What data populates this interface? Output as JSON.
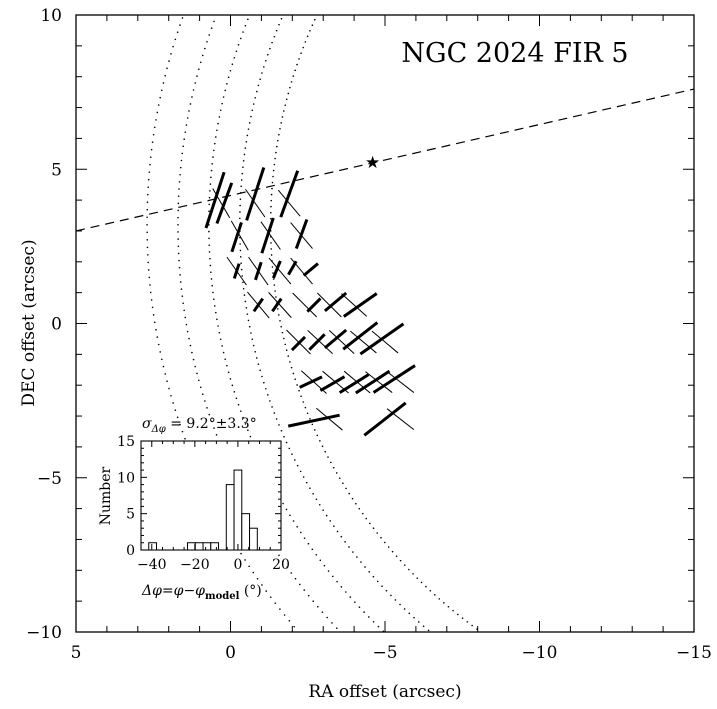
{
  "chart_data": [
    {
      "type": "scatter",
      "title": "NGC 2024 FIR 5",
      "xlabel": "RA offset (arcsec)",
      "ylabel": "DEC offset (arcsec)",
      "xlim": [
        5,
        -15
      ],
      "ylim": [
        -10,
        10
      ],
      "x_ticks": [
        5,
        0,
        -5,
        -10,
        -15
      ],
      "y_ticks": [
        10,
        5,
        0,
        -5,
        -10
      ],
      "x_tick_labels": [
        "5",
        "0",
        "−5",
        "−10",
        "−15"
      ],
      "y_tick_labels": [
        "10",
        "5",
        "0",
        "−5",
        "−10"
      ],
      "star_marker": {
        "x": -4.6,
        "y": 5.2,
        "symbol": "★"
      },
      "dashed_line": {
        "points": [
          [
            5,
            3.0
          ],
          [
            -15,
            7.6
          ]
        ]
      },
      "model_field_arcs": [
        {
          "center": [
            -17.5,
            3.2
          ],
          "radius": 16.2
        },
        {
          "center": [
            -17.5,
            3.2
          ],
          "radius": 17.2
        },
        {
          "center": [
            -17.5,
            3.2
          ],
          "radius": 18.2
        },
        {
          "center": [
            -17.5,
            3.2
          ],
          "radius": 19.2
        },
        {
          "center": [
            -17.5,
            3.2
          ],
          "radius": 20.2
        }
      ],
      "polarization_vectors_observed": [
        {
          "x": 0.5,
          "y": 4.0,
          "angle": 72,
          "length": 1.9
        },
        {
          "x": -0.8,
          "y": 4.2,
          "angle": 72,
          "length": 1.8
        },
        {
          "x": -1.9,
          "y": 4.2,
          "angle": 70,
          "length": 1.6
        },
        {
          "x": 0.2,
          "y": 3.9,
          "angle": 70,
          "length": 1.4
        },
        {
          "x": -0.2,
          "y": 2.8,
          "angle": 72,
          "length": 1.0
        },
        {
          "x": -1.2,
          "y": 2.85,
          "angle": 72,
          "length": 1.2
        },
        {
          "x": -2.3,
          "y": 2.9,
          "angle": 70,
          "length": 1.0
        },
        {
          "x": -0.2,
          "y": 1.7,
          "angle": 72,
          "length": 0.5
        },
        {
          "x": -0.9,
          "y": 1.7,
          "angle": 72,
          "length": 0.6
        },
        {
          "x": -1.5,
          "y": 1.75,
          "angle": 68,
          "length": 0.6
        },
        {
          "x": -2.0,
          "y": 1.8,
          "angle": 60,
          "length": 0.5
        },
        {
          "x": -2.6,
          "y": 1.75,
          "angle": 40,
          "length": 0.6
        },
        {
          "x": -0.9,
          "y": 0.6,
          "angle": 55,
          "length": 0.5
        },
        {
          "x": -1.5,
          "y": 0.6,
          "angle": 55,
          "length": 0.5
        },
        {
          "x": -2.7,
          "y": 0.6,
          "angle": 45,
          "length": 0.6
        },
        {
          "x": -3.4,
          "y": 0.7,
          "angle": 40,
          "length": 0.9
        },
        {
          "x": -4.2,
          "y": 0.6,
          "angle": 35,
          "length": 1.3
        },
        {
          "x": -2.2,
          "y": -0.65,
          "angle": 45,
          "length": 0.6
        },
        {
          "x": -2.8,
          "y": -0.6,
          "angle": 45,
          "length": 0.7
        },
        {
          "x": -3.4,
          "y": -0.5,
          "angle": 40,
          "length": 0.9
        },
        {
          "x": -4.2,
          "y": -0.4,
          "angle": 38,
          "length": 1.4
        },
        {
          "x": -4.9,
          "y": -0.5,
          "angle": 35,
          "length": 1.7
        },
        {
          "x": -2.6,
          "y": -1.9,
          "angle": 25,
          "length": 0.8
        },
        {
          "x": -3.3,
          "y": -1.95,
          "angle": 30,
          "length": 0.9
        },
        {
          "x": -4.0,
          "y": -1.95,
          "angle": 32,
          "length": 1.1
        },
        {
          "x": -4.6,
          "y": -1.9,
          "angle": 33,
          "length": 1.3
        },
        {
          "x": -5.3,
          "y": -1.8,
          "angle": 33,
          "length": 1.6
        },
        {
          "x": -2.7,
          "y": -3.15,
          "angle": 12,
          "length": 1.7
        },
        {
          "x": -5.0,
          "y": -3.1,
          "angle": 38,
          "length": 1.7
        }
      ],
      "polarization_vectors_model": [
        {
          "x": 0.3,
          "y": 3.9,
          "angle": -60,
          "length": 1.1
        },
        {
          "x": -0.8,
          "y": 3.9,
          "angle": -55,
          "length": 1.1
        },
        {
          "x": -1.9,
          "y": 3.9,
          "angle": -50,
          "length": 1.1
        },
        {
          "x": -0.3,
          "y": 2.85,
          "angle": -60,
          "length": 1.1
        },
        {
          "x": -1.3,
          "y": 2.85,
          "angle": -55,
          "length": 1.1
        },
        {
          "x": -2.3,
          "y": 2.85,
          "angle": -50,
          "length": 1.1
        },
        {
          "x": -0.2,
          "y": 1.7,
          "angle": -55,
          "length": 1.1
        },
        {
          "x": -0.9,
          "y": 1.7,
          "angle": -55,
          "length": 1.1
        },
        {
          "x": -1.6,
          "y": 1.7,
          "angle": -50,
          "length": 1.1
        },
        {
          "x": -2.3,
          "y": 1.7,
          "angle": -50,
          "length": 1.1
        },
        {
          "x": -0.9,
          "y": 0.6,
          "angle": -50,
          "length": 1.1
        },
        {
          "x": -1.6,
          "y": 0.6,
          "angle": -48,
          "length": 1.1
        },
        {
          "x": -2.4,
          "y": 0.6,
          "angle": -45,
          "length": 1.1
        },
        {
          "x": -3.2,
          "y": 0.6,
          "angle": -45,
          "length": 1.1
        },
        {
          "x": -4.0,
          "y": 0.6,
          "angle": -42,
          "length": 1.1
        },
        {
          "x": -2.2,
          "y": -0.6,
          "angle": -45,
          "length": 1.1
        },
        {
          "x": -2.9,
          "y": -0.6,
          "angle": -43,
          "length": 1.1
        },
        {
          "x": -3.6,
          "y": -0.6,
          "angle": -43,
          "length": 1.1
        },
        {
          "x": -4.3,
          "y": -0.6,
          "angle": -40,
          "length": 1.1
        },
        {
          "x": -5.0,
          "y": -0.6,
          "angle": -40,
          "length": 1.1
        },
        {
          "x": -2.7,
          "y": -1.9,
          "angle": -42,
          "length": 1.1
        },
        {
          "x": -3.4,
          "y": -1.9,
          "angle": -40,
          "length": 1.1
        },
        {
          "x": -4.1,
          "y": -1.9,
          "angle": -40,
          "length": 1.1
        },
        {
          "x": -4.8,
          "y": -1.9,
          "angle": -38,
          "length": 1.1
        },
        {
          "x": -5.5,
          "y": -1.9,
          "angle": -38,
          "length": 1.1
        },
        {
          "x": -3.2,
          "y": -3.1,
          "angle": -40,
          "length": 1.1
        },
        {
          "x": -5.5,
          "y": -3.1,
          "angle": -38,
          "length": 1.1
        }
      ],
      "grid": false
    },
    {
      "type": "bar",
      "title": "σΔφ = 9.2°±3.3°",
      "xlabel": "Δφ=φ−φmodel (°)",
      "ylabel": "Number",
      "xlim": [
        -45,
        20
      ],
      "ylim": [
        0,
        15
      ],
      "x_ticks": [
        -40,
        -20,
        0,
        20
      ],
      "y_ticks": [
        0,
        5,
        10,
        15
      ],
      "x_tick_labels": [
        "−40",
        "−20",
        "0",
        "20"
      ],
      "y_tick_labels": [
        "0",
        "5",
        "10",
        "15"
      ],
      "bin_width": 3.6,
      "bin_lefts": [
        -41.4,
        -37.8,
        -34.2,
        -30.6,
        -27.0,
        -23.4,
        -19.8,
        -16.2,
        -12.6,
        -9.0,
        -5.4,
        -1.8,
        1.8,
        5.4,
        9.0
      ],
      "values": [
        1,
        0,
        0,
        0,
        0,
        1,
        1,
        1,
        1,
        0,
        9,
        11,
        5,
        3,
        0
      ],
      "grid": false
    }
  ],
  "labels": {
    "title": "NGC 2024 FIR 5",
    "xlabel": "RA offset (arcsec)",
    "ylabel": "DEC offset (arcsec)",
    "inset_sigma_prefix": "σ",
    "inset_sigma_sub": "Δφ",
    "inset_sigma_value": " = 9.2°±3.3°",
    "inset_ylabel": "Number",
    "inset_xlabel_main": "Δφ=φ−φ",
    "inset_xlabel_sub": "model",
    "inset_xlabel_unit": " (°)"
  }
}
